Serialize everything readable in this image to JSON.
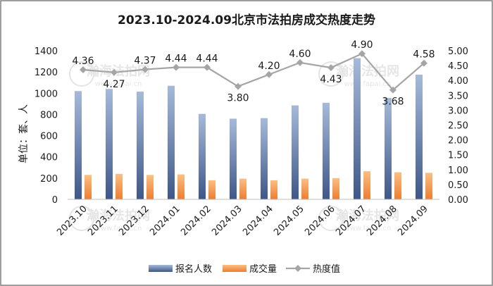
{
  "chart_data": {
    "type": "bar",
    "title": "2023.10-2024.09北京市法拍房成交热度走势",
    "ylabel": "单位：套、人",
    "categories": [
      "2023.10",
      "2023.11",
      "2023.12",
      "2024.01",
      "2024.02",
      "2024.03",
      "2024.04",
      "2024.05",
      "2024.06",
      "2024.07",
      "2024.08",
      "2024.09"
    ],
    "series": [
      {
        "name": "报名人数",
        "kind": "bar",
        "axis": "left",
        "values": [
          1020,
          1040,
          1015,
          1070,
          805,
          760,
          765,
          885,
          910,
          1330,
          955,
          1175
        ]
      },
      {
        "name": "成交量",
        "kind": "bar",
        "axis": "left",
        "values": [
          230,
          240,
          230,
          235,
          180,
          195,
          180,
          195,
          200,
          265,
          255,
          250
        ]
      },
      {
        "name": "热度值",
        "kind": "line",
        "axis": "right",
        "values": [
          4.36,
          4.27,
          4.37,
          4.44,
          4.44,
          3.8,
          4.2,
          4.6,
          4.43,
          4.9,
          3.68,
          4.58
        ],
        "labels": [
          "4.36",
          "4.27",
          "4.37",
          "4.44",
          "4.44",
          "3.80",
          "4.20",
          "4.60",
          "4.43",
          "4.90",
          "3.68",
          "4.58"
        ]
      }
    ],
    "y_left": {
      "min": 0,
      "max": 1400,
      "step": 200,
      "ticks": [
        "0",
        "200",
        "400",
        "600",
        "800",
        "1000",
        "1200",
        "1400"
      ]
    },
    "y_right": {
      "min": 0,
      "max": 5,
      "step": 0.5,
      "ticks": [
        "0.00",
        "0.50",
        "1.00",
        "1.50",
        "2.00",
        "2.50",
        "3.00",
        "3.50",
        "4.00",
        "4.50",
        "5.00"
      ]
    },
    "legend_position": "bottom",
    "grid": false
  },
  "watermark": {
    "brand": "瀚海法拍网",
    "url": "www.fapai.cn"
  },
  "colors": {
    "bar1_top": "#a6bad8",
    "bar1_bottom": "#3f5787",
    "bar2_top": "#fbbf82",
    "bar2_bottom": "#ed7d31",
    "line": "#a5a5a5",
    "text": "#1a1a1a",
    "border": "#7f7f7f",
    "axis": "#bfbfbf"
  }
}
